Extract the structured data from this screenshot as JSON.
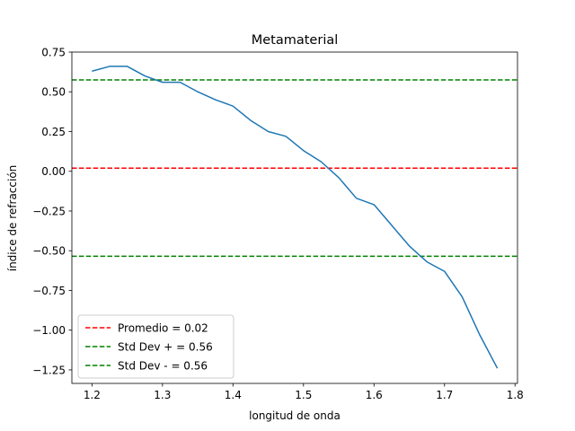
{
  "chart_data": {
    "type": "line",
    "title": "Metamaterial",
    "xlabel": "longitud de onda",
    "ylabel": "índice de refracción",
    "xlim": [
      1.1715,
      1.8035
    ],
    "ylim": [
      -1.335,
      0.75
    ],
    "xticks": [
      1.2,
      1.3,
      1.4,
      1.5,
      1.6,
      1.7,
      1.8
    ],
    "xtick_labels": [
      "1.2",
      "1.3",
      "1.4",
      "1.5",
      "1.6",
      "1.7",
      "1.8"
    ],
    "yticks": [
      0.75,
      0.5,
      0.25,
      0.0,
      -0.25,
      -0.5,
      -0.75,
      -1.0,
      -1.25
    ],
    "ytick_labels": [
      "0.75",
      "0.50",
      "0.25",
      "0.00",
      "−0.25",
      "−0.50",
      "−0.75",
      "−1.00",
      "−1.25"
    ],
    "grid": false,
    "legend_position": "lower-left",
    "series": [
      {
        "color": "#1f77b4",
        "x": [
          1.2,
          1.225,
          1.25,
          1.275,
          1.3,
          1.325,
          1.35,
          1.375,
          1.4,
          1.425,
          1.45,
          1.475,
          1.5,
          1.525,
          1.55,
          1.575,
          1.6,
          1.625,
          1.65,
          1.675,
          1.7,
          1.725,
          1.75,
          1.775
        ],
        "y": [
          0.63,
          0.66,
          0.66,
          0.6,
          0.56,
          0.56,
          0.5,
          0.45,
          0.41,
          0.32,
          0.25,
          0.22,
          0.13,
          0.06,
          -0.04,
          -0.17,
          -0.21,
          -0.34,
          -0.47,
          -0.57,
          -0.63,
          -0.79,
          -1.03,
          -1.24
        ]
      }
    ],
    "hlines": [
      {
        "label": "Promedio = 0.02",
        "y": 0.02,
        "color": "#ff0000",
        "style": "dashed"
      },
      {
        "label": "Std Dev + = 0.56",
        "y": 0.575,
        "color": "#008000",
        "style": "dashed"
      },
      {
        "label": "Std Dev - = 0.56",
        "y": -0.535,
        "color": "#008000",
        "style": "dashed"
      }
    ]
  }
}
